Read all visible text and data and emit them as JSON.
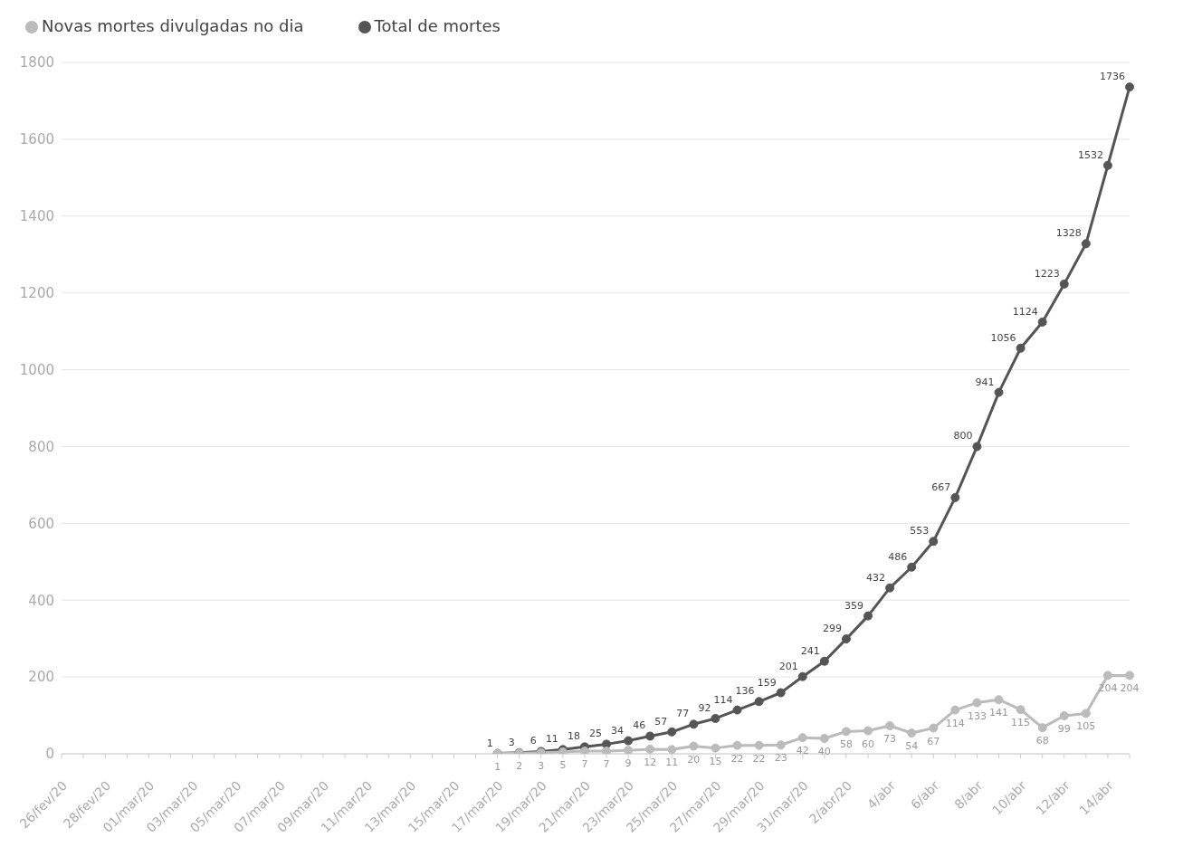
{
  "chart_data": {
    "type": "line",
    "categories": [
      "26/fev/20",
      null,
      "28/fev/20",
      null,
      "01/mar/20",
      null,
      "03/mar/20",
      null,
      "05/mar/20",
      null,
      "07/mar/20",
      null,
      "09/mar/20",
      null,
      "11/mar/20",
      null,
      "13/mar/20",
      null,
      "15/mar/20",
      null,
      "17/mar/20",
      null,
      "19/mar/20",
      null,
      "21/mar/20",
      null,
      "23/mar/20",
      null,
      "25/mar/20",
      null,
      "27/mar/20",
      null,
      "29/mar/20",
      null,
      "31/mar/20",
      null,
      "2/abr/20",
      null,
      "4/abr",
      null,
      "6/abr",
      null,
      "8/abr",
      null,
      "10/abr",
      null,
      "12/abr",
      null,
      "14/abr",
      null
    ],
    "series": [
      {
        "name": "Total de mortes",
        "color": "#555555",
        "values": [
          null,
          null,
          null,
          null,
          null,
          null,
          null,
          null,
          null,
          null,
          null,
          null,
          null,
          null,
          null,
          null,
          null,
          null,
          null,
          null,
          1,
          3,
          6,
          11,
          18,
          25,
          34,
          46,
          57,
          77,
          92,
          114,
          136,
          159,
          201,
          241,
          299,
          359,
          432,
          486,
          553,
          667,
          800,
          941,
          1056,
          1124,
          1223,
          1328,
          1532,
          1736
        ]
      },
      {
        "name": "Novas mortes divulgadas no dia",
        "color": "#bbbbbb",
        "values": [
          null,
          null,
          null,
          null,
          null,
          null,
          null,
          null,
          null,
          null,
          null,
          null,
          null,
          null,
          null,
          null,
          null,
          null,
          null,
          null,
          1,
          2,
          3,
          5,
          7,
          7,
          9,
          12,
          11,
          20,
          15,
          22,
          22,
          23,
          42,
          40,
          58,
          60,
          73,
          54,
          67,
          114,
          133,
          141,
          115,
          68,
          99,
          105,
          204,
          204
        ]
      }
    ],
    "ylim": [
      0,
      1800
    ],
    "yticks": [
      0,
      200,
      400,
      600,
      800,
      1000,
      1200,
      1400,
      1600,
      1800
    ],
    "grid": "y",
    "legend": "top left",
    "marker": "circle",
    "line_style": "solid",
    "data_labels": true
  }
}
